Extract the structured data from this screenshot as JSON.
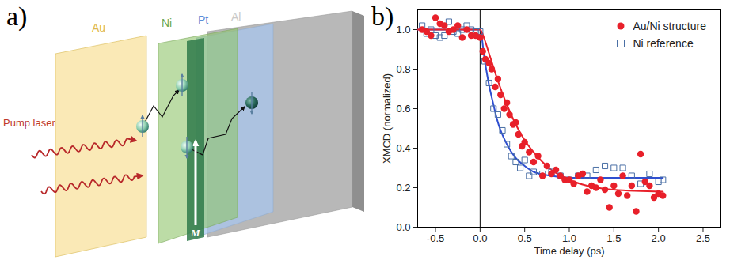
{
  "diagram": {
    "label": "a)",
    "pump_label": "Pump laser",
    "magnetization_label": "M",
    "layers": [
      {
        "label": "Au",
        "color": "#e0b84c"
      },
      {
        "label": "Ni",
        "color": "#6aa84f"
      },
      {
        "label": "Pt",
        "color": "#5b8fd9"
      },
      {
        "label": "Al",
        "color": "#c9c9c9"
      }
    ]
  },
  "chart_data": {
    "type": "scatter",
    "panel_label": "b)",
    "xlabel": "Time delay (ps)",
    "ylabel": "XMCD (normalized)",
    "xlim": [
      -0.7,
      2.7
    ],
    "ylim": [
      0,
      1.1
    ],
    "xticks": [
      -0.5,
      {
        "value": 0,
        "label": "0.0"
      },
      0.5,
      {
        "value": 1,
        "label": "1.0"
      },
      1.5,
      {
        "value": 2,
        "label": "2.0"
      },
      2.5
    ],
    "yticks": [
      {
        "value": 0,
        "label": "0.0"
      },
      0.2,
      0.4,
      0.6,
      0.8,
      {
        "value": 1,
        "label": "1.0"
      }
    ],
    "vline": 0,
    "legend": "upper right",
    "series": [
      {
        "name": "Ni reference",
        "color": "#4a6fa5",
        "marker": "open square",
        "x": [
          -0.65,
          -0.6,
          -0.55,
          -0.5,
          -0.45,
          -0.4,
          -0.35,
          -0.3,
          -0.25,
          -0.2,
          -0.15,
          -0.1,
          -0.05,
          0.0,
          0.05,
          0.1,
          0.15,
          0.2,
          0.25,
          0.3,
          0.35,
          0.4,
          0.45,
          0.5,
          0.55,
          0.6,
          0.7,
          0.8,
          0.9,
          1.0,
          1.1,
          1.2,
          1.3,
          1.4,
          1.5,
          1.6,
          1.7,
          1.8,
          1.9,
          2.0,
          2.05
        ],
        "values": [
          1.02,
          0.98,
          1.0,
          0.97,
          0.96,
          0.97,
          1.04,
          0.99,
          0.98,
          1.0,
          1.02,
          1.0,
          0.99,
          0.99,
          0.84,
          0.73,
          0.6,
          0.57,
          0.49,
          0.42,
          0.36,
          0.33,
          0.3,
          0.34,
          0.26,
          0.28,
          0.27,
          0.28,
          0.26,
          0.24,
          0.26,
          0.26,
          0.29,
          0.31,
          0.3,
          0.3,
          0.26,
          0.22,
          0.27,
          0.23,
          0.24
        ],
        "fit": {
          "color": "#2f4fd0",
          "line_style": "solid",
          "x": [
            -0.7,
            0.0,
            0.05,
            0.1,
            0.15,
            0.2,
            0.3,
            0.4,
            0.5,
            0.6,
            0.8,
            1.0,
            1.5,
            2.05
          ],
          "values": [
            1.0,
            1.0,
            0.85,
            0.72,
            0.62,
            0.53,
            0.42,
            0.35,
            0.31,
            0.28,
            0.26,
            0.25,
            0.25,
            0.25
          ]
        }
      },
      {
        "name": "Au/Ni structure",
        "color": "#e8202a",
        "marker": "circle",
        "x": [
          -0.65,
          -0.6,
          -0.55,
          -0.5,
          -0.45,
          -0.4,
          -0.35,
          -0.3,
          -0.25,
          -0.2,
          -0.15,
          -0.1,
          -0.05,
          0.0,
          0.03,
          0.06,
          0.1,
          0.13,
          0.17,
          0.2,
          0.23,
          0.27,
          0.3,
          0.33,
          0.37,
          0.4,
          0.43,
          0.47,
          0.5,
          0.55,
          0.6,
          0.65,
          0.7,
          0.75,
          0.8,
          0.85,
          0.9,
          0.95,
          1.0,
          1.05,
          1.1,
          1.15,
          1.2,
          1.25,
          1.3,
          1.35,
          1.4,
          1.45,
          1.5,
          1.55,
          1.6,
          1.65,
          1.7,
          1.75,
          1.8,
          1.85,
          1.9,
          1.95,
          2.0,
          2.05
        ],
        "values": [
          1.0,
          0.99,
          0.97,
          1.06,
          1.03,
          1.02,
          0.99,
          1.0,
          1.02,
          0.96,
          1.0,
          0.97,
          0.97,
          0.96,
          0.89,
          0.85,
          0.83,
          0.8,
          0.71,
          0.75,
          0.67,
          0.6,
          0.63,
          0.57,
          0.52,
          0.53,
          0.47,
          0.41,
          0.43,
          0.38,
          0.33,
          0.36,
          0.26,
          0.31,
          0.27,
          0.29,
          0.26,
          0.24,
          0.24,
          0.22,
          0.26,
          0.27,
          0.18,
          0.21,
          0.2,
          0.24,
          0.19,
          0.1,
          0.21,
          0.17,
          0.26,
          0.16,
          0.21,
          0.08,
          0.37,
          0.23,
          0.21,
          0.15,
          0.17,
          0.16
        ],
        "fit": {
          "color": "#e8202a",
          "line_style": "solid",
          "x": [
            -0.7,
            0.0,
            0.05,
            0.1,
            0.2,
            0.3,
            0.4,
            0.5,
            0.6,
            0.7,
            0.8,
            1.0,
            1.2,
            1.5,
            2.05
          ],
          "values": [
            1.0,
            1.0,
            0.95,
            0.88,
            0.74,
            0.62,
            0.52,
            0.44,
            0.38,
            0.33,
            0.29,
            0.24,
            0.21,
            0.19,
            0.18
          ]
        }
      }
    ]
  }
}
